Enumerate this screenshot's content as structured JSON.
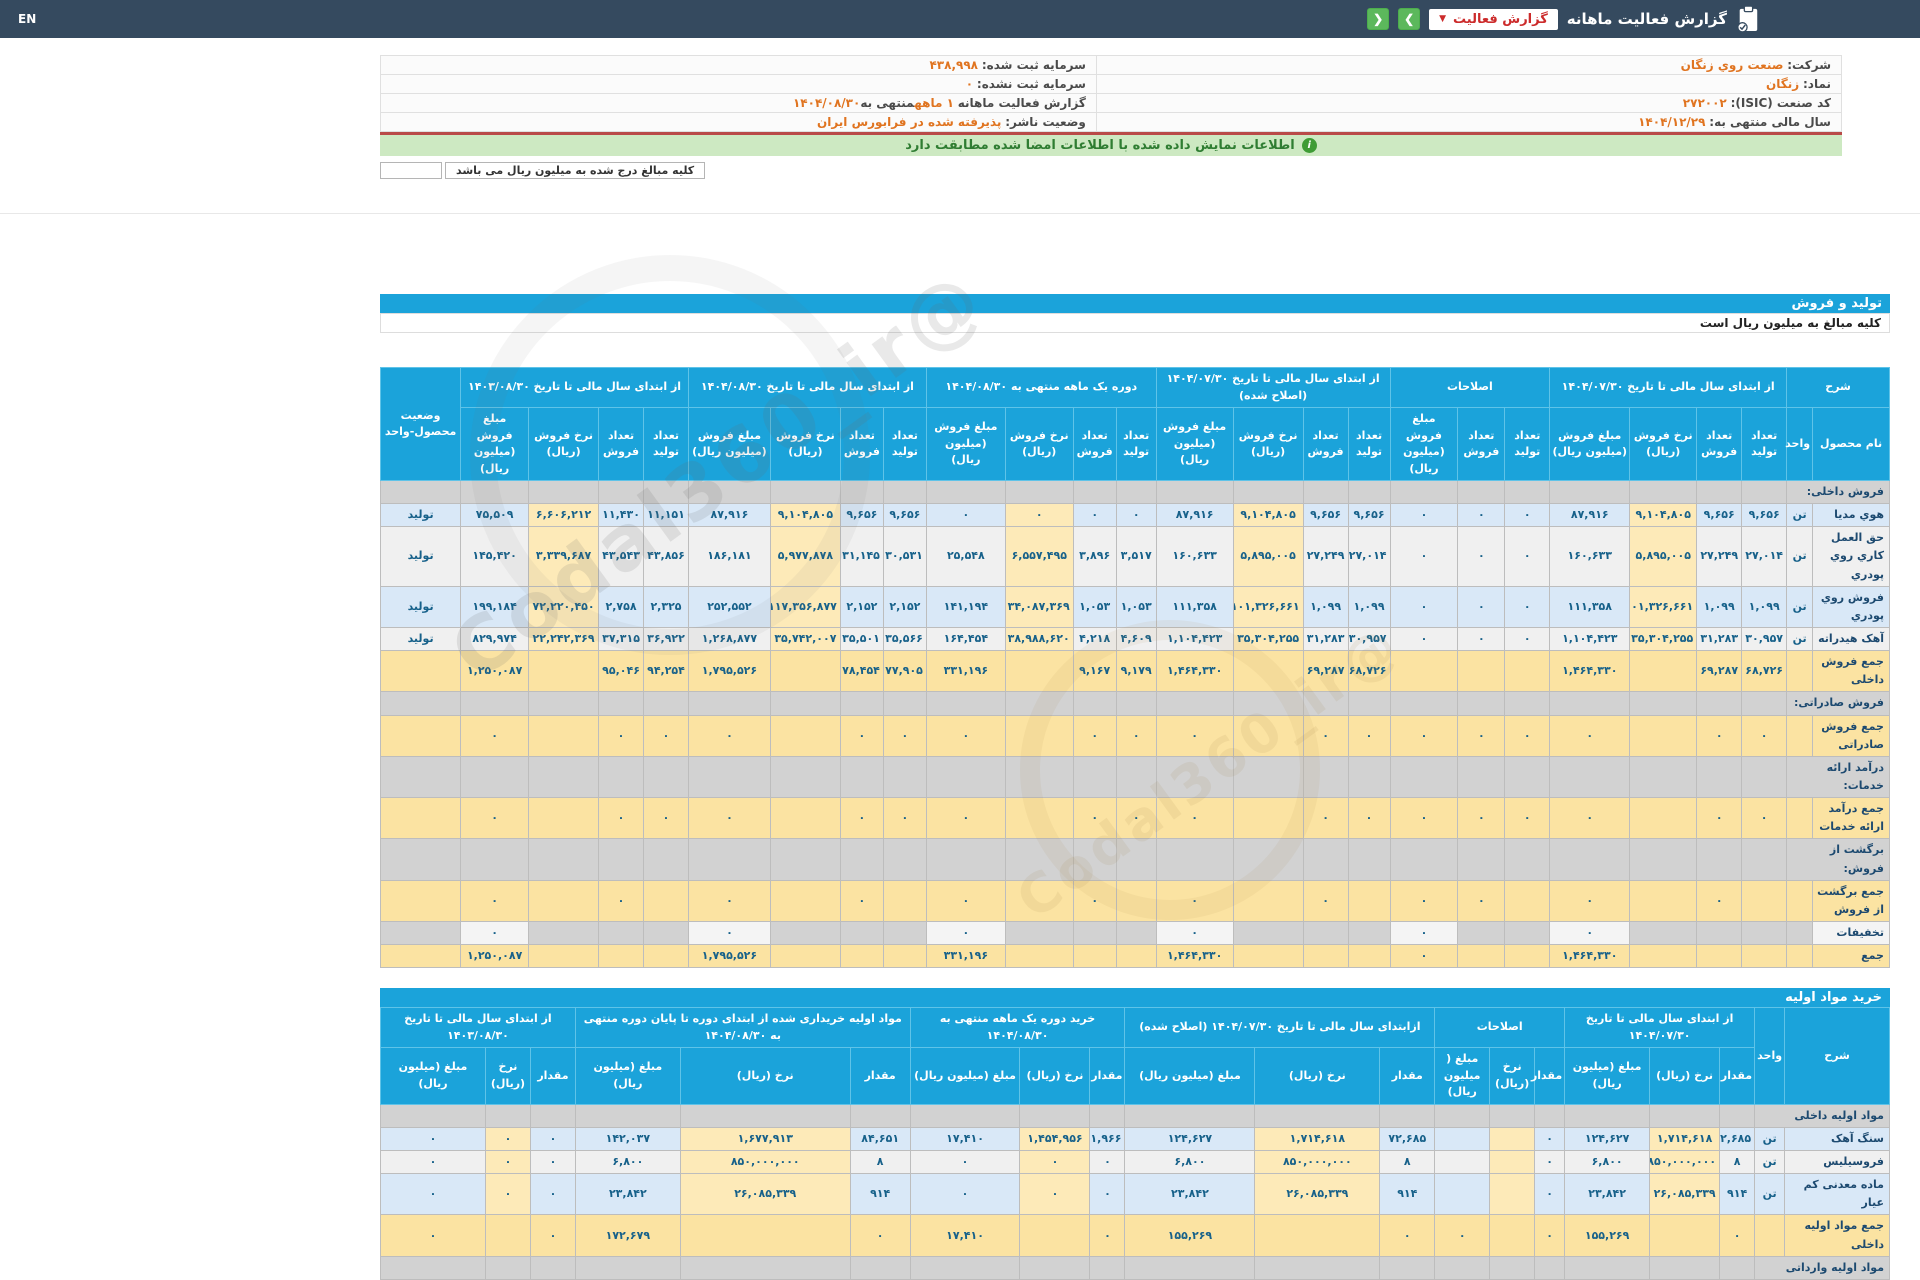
{
  "colors": {
    "navy": "#354a5f",
    "cyan": "#1ba3da",
    "green_button": "#5cb85c",
    "red_accent": "#cc2b2b",
    "orange_value": "#e07420",
    "alert_green_bg": "#cde9c2",
    "row_blue": "#d9e8f7",
    "row_gray": "#f0f0f0",
    "rate_cream": "#fdeab8",
    "sum_cream": "#fbe3a2",
    "red_line": "#b94a48"
  },
  "navbar": {
    "title": "گزارش فعالیت ماهانه",
    "dropdown_label": "گزارش فعالیت",
    "lang": "EN",
    "back_icon": "❮",
    "forward_icon": "❯",
    "caret_icon": "▼"
  },
  "info": {
    "company_label": "شرکت:",
    "company": "صنعت روي زنگان",
    "symbol_label": "نماد:",
    "symbol": "زنگان",
    "isic_label": "کد صنعت (ISIC):",
    "isic": "۲۷۲۰۰۲",
    "fiscal_label": "سال مالی منتهی به:",
    "fiscal": "۱۴۰۴/۱۲/۲۹",
    "cap_reg_label": "سرمایه ثبت شده:",
    "cap_reg": "۴۳۸,۹۹۸",
    "cap_unreg_label": "سرمایه ثبت نشده:",
    "cap_unreg": "۰",
    "report_label": "گزارش فعالیت ماهانه",
    "report_months": "۱ ماهه",
    "report_mid": "منتهی به",
    "report_date": "۱۴۰۴/۰۸/۳۰",
    "status_label": "وضعیت ناشر:",
    "status": "پذیرفته شده در فرابورس ایران"
  },
  "alert": {
    "text": "اطلاعات نمایش داده شده با اطلاعات امضا شده مطابقت دارد",
    "icon": "i"
  },
  "note": {
    "text": "کلیه مبالغ درج شده به میلیون ریال می باشد"
  },
  "watermark": {
    "text": "@Codal360_ir"
  },
  "sales": {
    "bar": "تولید و فروش",
    "subtitle": "کلیه مبالغ به میلیون ریال است",
    "table": {
      "name": "sales-table",
      "widths": [
        5.1,
        1.72,
        2.98,
        2.98,
        4.44,
        5.3,
        2.98,
        3.11,
        4.5,
        2.78,
        2.98,
        4.64,
        5.1,
        2.65,
        2.85,
        4.5,
        5.23,
        2.85,
        2.85,
        4.64,
        5.43,
        2.98,
        2.98,
        4.64,
        4.5,
        5.3
      ],
      "rate": [
        4,
        11,
        15,
        19,
        23
      ],
      "header": [
        [
          {
            "t": "شرح",
            "cs": 2
          },
          {
            "t": "از ابتدای سال مالی تا تاریخ ۱۴۰۴/۰۷/۳۰",
            "cs": 4
          },
          {
            "t": "اصلاحات",
            "cs": 3
          },
          {
            "t": "از ابتدای سال مالی تا تاریخ ۱۴۰۴/۰۷/۳۰ (اصلاح شده)",
            "cs": 4
          },
          {
            "t": "دوره یک ماهه منتهی به ۱۴۰۴/۰۸/۳۰",
            "cs": 4
          },
          {
            "t": "از ابتدای سال مالی تا تاریخ ۱۴۰۴/۰۸/۳۰",
            "cs": 4
          },
          {
            "t": "از ابتدای سال مالی تا تاریخ ۱۴۰۳/۰۸/۳۰",
            "cs": 4
          },
          {
            "t": "وضعیت محصول-واحد",
            "rs": 2
          }
        ],
        [
          {
            "t": "نام محصول"
          },
          {
            "t": "واحد"
          },
          {
            "t": "تعداد تولید"
          },
          {
            "t": "تعداد فروش"
          },
          {
            "t": "نرخ فروش (ریال)"
          },
          {
            "t": "مبلغ فروش (میلیون ریال)"
          },
          {
            "t": "تعداد تولید"
          },
          {
            "t": "تعداد فروش"
          },
          {
            "t": "مبلغ فروش (میلیون ریال)"
          },
          {
            "t": "تعداد تولید"
          },
          {
            "t": "تعداد فروش"
          },
          {
            "t": "نرخ فروش (ریال)"
          },
          {
            "t": "مبلغ فروش (میلیون ریال)"
          },
          {
            "t": "تعداد تولید"
          },
          {
            "t": "تعداد فروش"
          },
          {
            "t": "نرخ فروش (ریال)"
          },
          {
            "t": "مبلغ فروش (میلیون ریال)"
          },
          {
            "t": "تعداد تولید"
          },
          {
            "t": "تعداد فروش"
          },
          {
            "t": "نرخ فروش (ریال)"
          },
          {
            "t": "مبلغ فروش (میلیون ریال)"
          },
          {
            "t": "تعداد تولید"
          },
          {
            "t": "تعداد فروش"
          },
          {
            "t": "نرخ فروش (ریال)"
          },
          {
            "t": "مبلغ فروش (میلیون ریال)"
          }
        ]
      ],
      "rows": [
        {
          "sec": "فروش داخلی:"
        },
        {
          "k": "b",
          "cells": [
            "هوي مديا",
            "تن",
            "۹,۶۵۶",
            "۹,۶۵۶",
            "۹,۱۰۴,۸۰۵",
            "۸۷,۹۱۶",
            "۰",
            "۰",
            "۰",
            "۹,۶۵۶",
            "۹,۶۵۶",
            "۹,۱۰۴,۸۰۵",
            "۸۷,۹۱۶",
            "۰",
            "۰",
            "۰",
            "۰",
            "۹,۶۵۶",
            "۹,۶۵۶",
            "۹,۱۰۴,۸۰۵",
            "۸۷,۹۱۶",
            "۱۱,۱۵۱",
            "۱۱,۴۳۰",
            "۶,۶۰۶,۲۱۲",
            "۷۵,۵۰۹",
            "تولید"
          ]
        },
        {
          "k": "w",
          "cells": [
            "حق العمل کاري روي پودري",
            "تن",
            "۲۷,۰۱۴",
            "۲۷,۲۴۹",
            "۵,۸۹۵,۰۰۵",
            "۱۶۰,۶۳۳",
            "۰",
            "۰",
            "۰",
            "۲۷,۰۱۴",
            "۲۷,۲۴۹",
            "۵,۸۹۵,۰۰۵",
            "۱۶۰,۶۳۳",
            "۳,۵۱۷",
            "۳,۸۹۶",
            "۶,۵۵۷,۴۹۵",
            "۲۵,۵۴۸",
            "۳۰,۵۳۱",
            "۳۱,۱۴۵",
            "۵,۹۷۷,۸۷۸",
            "۱۸۶,۱۸۱",
            "۴۳,۸۵۶",
            "۴۳,۵۴۳",
            "۳,۳۳۹,۶۸۷",
            "۱۴۵,۴۲۰",
            "تولید"
          ]
        },
        {
          "k": "b",
          "cells": [
            "فروش روي پودري",
            "تن",
            "۱,۰۹۹",
            "۱,۰۹۹",
            "۱۰۱,۳۲۶,۶۶۱",
            "۱۱۱,۳۵۸",
            "۰",
            "۰",
            "۰",
            "۱,۰۹۹",
            "۱,۰۹۹",
            "۱۰۱,۳۲۶,۶۶۱",
            "۱۱۱,۳۵۸",
            "۱,۰۵۳",
            "۱,۰۵۳",
            "۱۳۴,۰۸۷,۳۶۹",
            "۱۴۱,۱۹۴",
            "۲,۱۵۲",
            "۲,۱۵۲",
            "۱۱۷,۳۵۶,۸۷۷",
            "۲۵۲,۵۵۲",
            "۲,۳۲۵",
            "۲,۷۵۸",
            "۷۲,۲۲۰,۴۵۰",
            "۱۹۹,۱۸۴",
            "تولید"
          ]
        },
        {
          "k": "w",
          "cells": [
            "آهک هیدراته",
            "تن",
            "۳۰,۹۵۷",
            "۳۱,۲۸۳",
            "۳۵,۳۰۴,۲۵۵",
            "۱,۱۰۴,۴۲۳",
            "۰",
            "۰",
            "۰",
            "۳۰,۹۵۷",
            "۳۱,۲۸۳",
            "۳۵,۳۰۴,۲۵۵",
            "۱,۱۰۴,۴۲۳",
            "۴,۶۰۹",
            "۴,۲۱۸",
            "۳۸,۹۸۸,۶۲۰",
            "۱۶۴,۴۵۴",
            "۳۵,۵۶۶",
            "۳۵,۵۰۱",
            "۳۵,۷۴۲,۰۰۷",
            "۱,۲۶۸,۸۷۷",
            "۳۶,۹۲۲",
            "۳۷,۳۱۵",
            "۲۲,۲۴۲,۳۶۹",
            "۸۲۹,۹۷۴",
            "تولید"
          ]
        },
        {
          "k": "sum",
          "cells": [
            "جمع فروش داخلی",
            "",
            "۶۸,۷۲۶",
            "۶۹,۲۸۷",
            "",
            "۱,۴۶۴,۳۳۰",
            "",
            "",
            "",
            "۶۸,۷۲۶",
            "۶۹,۲۸۷",
            "",
            "۱,۴۶۴,۳۳۰",
            "۹,۱۷۹",
            "۹,۱۶۷",
            "",
            "۳۳۱,۱۹۶",
            "۷۷,۹۰۵",
            "۷۸,۴۵۴",
            "",
            "۱,۷۹۵,۵۲۶",
            "۹۴,۲۵۴",
            "۹۵,۰۴۶",
            "",
            "۱,۲۵۰,۰۸۷",
            ""
          ]
        },
        {
          "sec": "فروش صادراتی:"
        },
        {
          "k": "sum",
          "cells": [
            "جمع فروش صادراتی",
            "",
            "۰",
            "۰",
            "",
            "۰",
            "۰",
            "۰",
            "۰",
            "۰",
            "۰",
            "",
            "۰",
            "۰",
            "۰",
            "",
            "۰",
            "۰",
            "۰",
            "",
            "۰",
            "۰",
            "۰",
            "",
            "۰",
            ""
          ]
        },
        {
          "sec": "درآمد ارائه خدمات:"
        },
        {
          "k": "sum",
          "cells": [
            "جمع درآمد ارائه خدمات",
            "",
            "۰",
            "۰",
            "",
            "۰",
            "۰",
            "۰",
            "۰",
            "۰",
            "۰",
            "",
            "۰",
            "۰",
            "۰",
            "",
            "۰",
            "۰",
            "۰",
            "",
            "۰",
            "۰",
            "۰",
            "",
            "۰",
            ""
          ]
        },
        {
          "sec": "برگشت از فروش:"
        },
        {
          "k": "sum",
          "cells": [
            "جمع برگشت از فروش",
            "",
            "",
            "۰",
            "",
            "۰",
            "",
            "۰",
            "۰",
            "",
            "۰",
            "",
            "۰",
            "",
            "۰",
            "",
            "۰",
            "",
            "۰",
            "",
            "۰",
            "",
            "۰",
            "",
            "۰",
            ""
          ]
        },
        {
          "k": "disc",
          "cells": [
            "تخفیفات",
            "",
            "",
            "",
            "",
            "۰",
            "",
            "",
            "۰",
            "",
            "",
            "",
            "۰",
            "",
            "",
            "",
            "۰",
            "",
            "",
            "",
            "۰",
            "",
            "",
            "",
            "۰",
            ""
          ]
        },
        {
          "k": "sum",
          "cells": [
            "جمع",
            "",
            "",
            "",
            "",
            "۱,۴۶۴,۳۳۰",
            "",
            "",
            "۰",
            "",
            "",
            "",
            "۱,۴۶۴,۳۳۰",
            "",
            "",
            "",
            "۳۳۱,۱۹۶",
            "",
            "",
            "",
            "۱,۷۹۵,۵۲۶",
            "",
            "",
            "",
            "۱,۲۵۰,۰۸۷",
            ""
          ]
        }
      ]
    }
  },
  "purchases": {
    "bar": "خرید مواد اولیه",
    "table": {
      "name": "purchases-table",
      "widths": [
        6.95,
        1.99,
        2.32,
        4.64,
        5.63,
        1.99,
        2.98,
        3.64,
        3.64,
        8.28,
        8.61,
        2.32,
        4.64,
        7.28,
        3.97,
        11.26,
        6.95,
        2.98,
        2.98,
        6.95
      ],
      "rate": [
        3,
        6,
        9,
        12,
        15,
        18
      ],
      "header": [
        [
          {
            "t": "شرح",
            "rs": 2
          },
          {
            "t": "واحد",
            "rs": 2
          },
          {
            "t": "از ابتدای سال مالی تا تاریخ ۱۴۰۴/۰۷/۳۰",
            "cs": 3
          },
          {
            "t": "اصلاحات",
            "cs": 3
          },
          {
            "t": "ازابتدای سال مالی تا تاریخ ۱۴۰۴/۰۷/۳۰ (اصلاح شده)",
            "cs": 3
          },
          {
            "t": "خرید دوره یک ماهه منتهی به ۱۴۰۴/۰۸/۳۰",
            "cs": 3
          },
          {
            "t": "مواد اولیه خریداری شده از ابتدای دوره تا پایان دوره منتهی به ۱۴۰۴/۰۸/۳۰",
            "cs": 3
          },
          {
            "t": "از ابتدای سال مالی تا تاریخ ۱۴۰۳/۰۸/۳۰",
            "cs": 3
          }
        ],
        [
          {
            "t": "مقدار"
          },
          {
            "t": "نرخ (ریال)"
          },
          {
            "t": "مبلغ (میلیون ریال)"
          },
          {
            "t": "مقدار"
          },
          {
            "t": "نرخ (ریال)"
          },
          {
            "t": "مبلغ ( میلیون ریال)"
          },
          {
            "t": "مقدار"
          },
          {
            "t": "نرخ (ریال)"
          },
          {
            "t": "مبلغ (میلیون ریال)"
          },
          {
            "t": "مقدار"
          },
          {
            "t": "نرخ (ریال)"
          },
          {
            "t": "مبلغ (میلیون ریال)"
          },
          {
            "t": "مقدار"
          },
          {
            "t": "نرخ (ریال)"
          },
          {
            "t": "مبلغ (میلیون ریال)"
          },
          {
            "t": "مقدار"
          },
          {
            "t": "نرخ (ریال)"
          },
          {
            "t": "مبلغ (میلیون ریال)"
          }
        ]
      ],
      "rows": [
        {
          "sec": "مواد اولیه داخلی"
        },
        {
          "k": "b",
          "cells": [
            "سنگ آهک",
            "تن",
            "۷۲,۶۸۵",
            "۱,۷۱۴,۶۱۸",
            "۱۲۴,۶۲۷",
            "۰",
            "",
            "",
            "۷۲,۶۸۵",
            "۱,۷۱۴,۶۱۸",
            "۱۲۴,۶۲۷",
            "۱۱,۹۶۶",
            "۱,۴۵۴,۹۵۶",
            "۱۷,۴۱۰",
            "۸۴,۶۵۱",
            "۱,۶۷۷,۹۱۳",
            "۱۴۲,۰۳۷",
            "۰",
            "۰",
            "۰"
          ]
        },
        {
          "k": "w",
          "cells": [
            "فروسیلیس",
            "تن",
            "۸",
            "۸۵۰,۰۰۰,۰۰۰",
            "۶,۸۰۰",
            "۰",
            "",
            "",
            "۸",
            "۸۵۰,۰۰۰,۰۰۰",
            "۶,۸۰۰",
            "۰",
            "۰",
            "۰",
            "۸",
            "۸۵۰,۰۰۰,۰۰۰",
            "۶,۸۰۰",
            "۰",
            "۰",
            "۰"
          ]
        },
        {
          "k": "b",
          "cells": [
            "ماده معدنی کم عیار",
            "تن",
            "۹۱۴",
            "۲۶,۰۸۵,۳۳۹",
            "۲۳,۸۴۲",
            "۰",
            "",
            "",
            "۹۱۴",
            "۲۶,۰۸۵,۳۳۹",
            "۲۳,۸۴۲",
            "۰",
            "۰",
            "۰",
            "۹۱۴",
            "۲۶,۰۸۵,۳۳۹",
            "۲۳,۸۴۲",
            "۰",
            "۰",
            "۰"
          ]
        },
        {
          "k": "sum",
          "cells": [
            "جمع مواد اولیه داخلی",
            "",
            "۰",
            "",
            "۱۵۵,۲۶۹",
            "۰",
            "",
            "۰",
            "۰",
            "",
            "۱۵۵,۲۶۹",
            "۰",
            "",
            "۱۷,۴۱۰",
            "۰",
            "",
            "۱۷۲,۶۷۹",
            "۰",
            "",
            "۰"
          ]
        },
        {
          "sec": "مواد اولیه وارداتی"
        }
      ]
    }
  }
}
